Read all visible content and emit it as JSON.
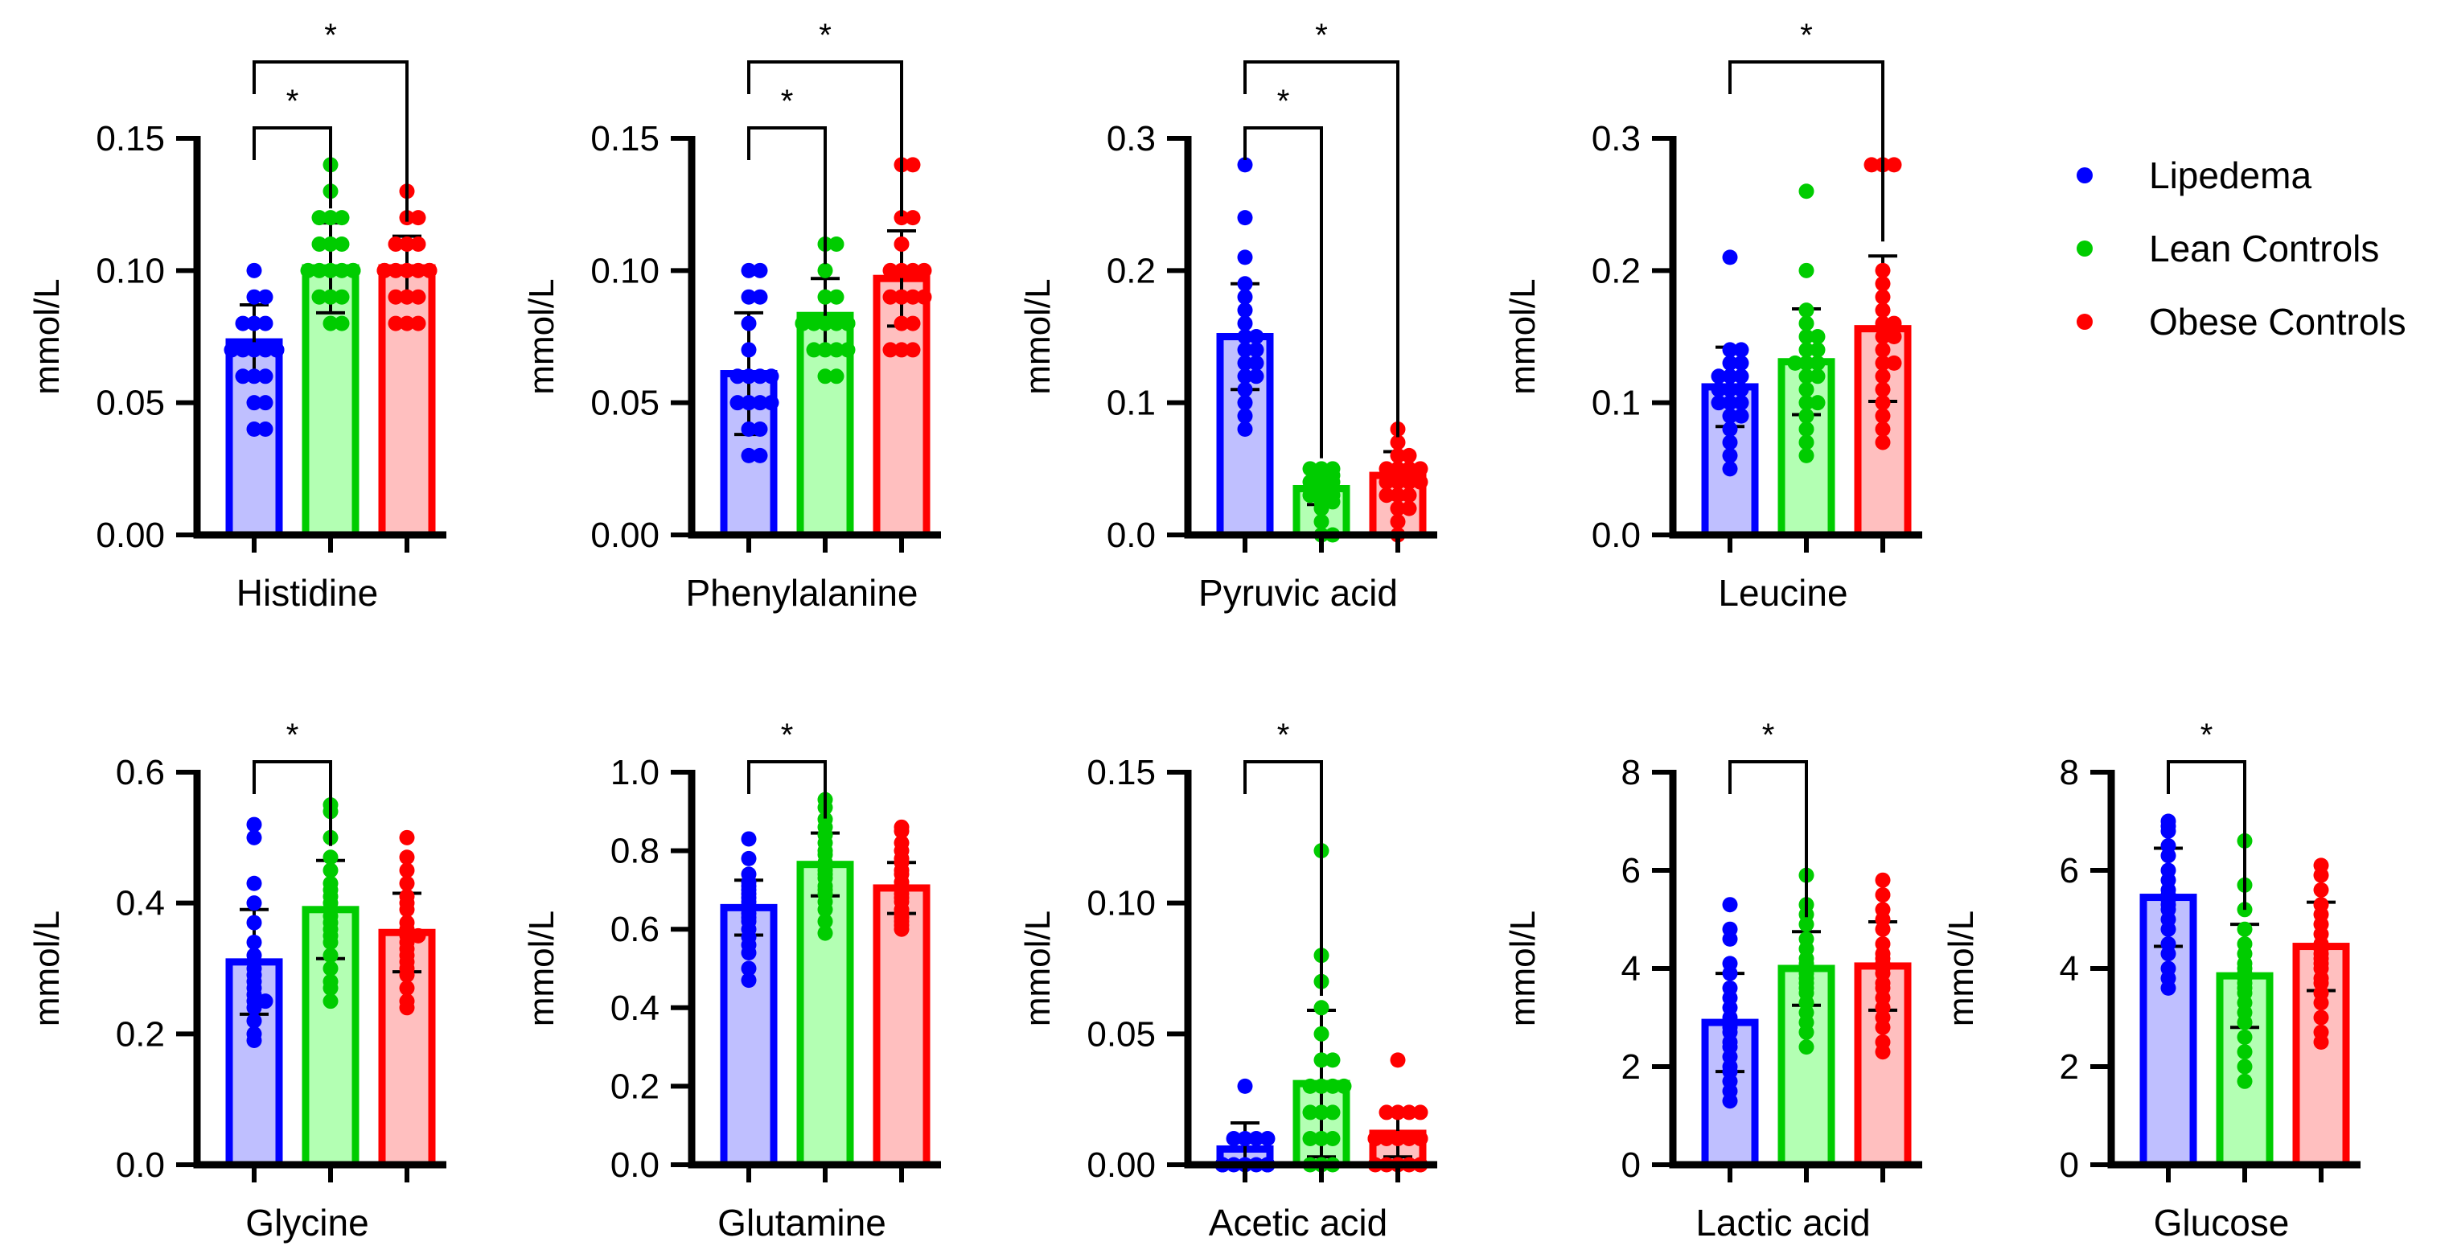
{
  "legend": {
    "items": [
      {
        "label": "Lipedema",
        "color": "#0000ff"
      },
      {
        "label": "Lean Controls",
        "color": "#00cc00"
      },
      {
        "label": "Obese Controls",
        "color": "#ff0000"
      }
    ]
  },
  "groups": [
    {
      "name": "Lipedema",
      "edge": "#0000ff",
      "fill": "#bfbfff"
    },
    {
      "name": "Lean Controls",
      "edge": "#00cc00",
      "fill": "#b3ffb3"
    },
    {
      "name": "Obese Controls",
      "edge": "#ff0000",
      "fill": "#ffbfbf"
    }
  ],
  "chart_data": [
    {
      "type": "bar",
      "title": "Histidine",
      "xlabel": "Histidine",
      "ylabel": "mmol/L",
      "ylim": [
        0,
        0.15
      ],
      "yticks": [
        "0.00",
        "0.05",
        "0.10",
        "0.15"
      ],
      "categories": [
        "Lipedema",
        "Lean Controls",
        "Obese Controls"
      ],
      "values": [
        0.073,
        0.101,
        0.101
      ],
      "sd": [
        0.014,
        0.017,
        0.012
      ],
      "points": [
        [
          0.1,
          0.09,
          0.09,
          0.08,
          0.08,
          0.08,
          0.07,
          0.07,
          0.07,
          0.07,
          0.07,
          0.07,
          0.06,
          0.06,
          0.06,
          0.05,
          0.05,
          0.04,
          0.04
        ],
        [
          0.14,
          0.13,
          0.12,
          0.12,
          0.12,
          0.11,
          0.11,
          0.11,
          0.1,
          0.1,
          0.1,
          0.1,
          0.1,
          0.1,
          0.09,
          0.09,
          0.09,
          0.08,
          0.08
        ],
        [
          0.13,
          0.12,
          0.12,
          0.11,
          0.11,
          0.11,
          0.1,
          0.1,
          0.1,
          0.1,
          0.1,
          0.1,
          0.1,
          0.09,
          0.09,
          0.09,
          0.08,
          0.08,
          0.08
        ]
      ],
      "significance": [
        {
          "from": 0,
          "to": 1,
          "label": "*"
        },
        {
          "from": 0,
          "to": 2,
          "label": "*"
        }
      ]
    },
    {
      "type": "bar",
      "title": "Phenylalanine",
      "xlabel": "Phenylalanine",
      "ylabel": "mmol/L",
      "ylim": [
        0,
        0.15
      ],
      "yticks": [
        "0.00",
        "0.05",
        "0.10",
        "0.15"
      ],
      "categories": [
        "Lipedema",
        "Lean Controls",
        "Obese Controls"
      ],
      "values": [
        0.061,
        0.083,
        0.097
      ],
      "sd": [
        0.023,
        0.014,
        0.018
      ],
      "points": [
        [
          0.1,
          0.1,
          0.09,
          0.09,
          0.08,
          0.07,
          0.06,
          0.06,
          0.06,
          0.06,
          0.05,
          0.05,
          0.05,
          0.05,
          0.04,
          0.04,
          0.03,
          0.03
        ],
        [
          0.11,
          0.11,
          0.1,
          0.09,
          0.09,
          0.08,
          0.08,
          0.08,
          0.08,
          0.08,
          0.08,
          0.08,
          0.07,
          0.07,
          0.07,
          0.07,
          0.06,
          0.06
        ],
        [
          0.14,
          0.14,
          0.12,
          0.12,
          0.11,
          0.1,
          0.1,
          0.1,
          0.1,
          0.09,
          0.09,
          0.09,
          0.09,
          0.08,
          0.08,
          0.07,
          0.07,
          0.07
        ]
      ],
      "significance": [
        {
          "from": 0,
          "to": 1,
          "label": "*"
        },
        {
          "from": 0,
          "to": 2,
          "label": "*"
        }
      ]
    },
    {
      "type": "bar",
      "title": "Pyruvic acid",
      "xlabel": "Pyruvic acid",
      "ylabel": "mmol/L",
      "ylim": [
        0,
        0.3
      ],
      "yticks": [
        "0.0",
        "0.1",
        "0.2",
        "0.3"
      ],
      "categories": [
        "Lipedema",
        "Lean Controls",
        "Obese Controls"
      ],
      "values": [
        0.15,
        0.035,
        0.045
      ],
      "sd": [
        0.04,
        0.012,
        0.018
      ],
      "points": [
        [
          0.28,
          0.24,
          0.21,
          0.19,
          0.18,
          0.17,
          0.16,
          0.15,
          0.15,
          0.14,
          0.14,
          0.13,
          0.13,
          0.12,
          0.12,
          0.11,
          0.1,
          0.09,
          0.08
        ],
        [
          0.05,
          0.05,
          0.05,
          0.045,
          0.045,
          0.04,
          0.04,
          0.04,
          0.035,
          0.035,
          0.03,
          0.03,
          0.03,
          0.025,
          0.025,
          0.02,
          0.01,
          0.0,
          0.0
        ],
        [
          0.08,
          0.07,
          0.06,
          0.06,
          0.05,
          0.05,
          0.05,
          0.05,
          0.04,
          0.04,
          0.04,
          0.04,
          0.03,
          0.03,
          0.03,
          0.02,
          0.02,
          0.01,
          0.0
        ]
      ],
      "significance": [
        {
          "from": 0,
          "to": 1,
          "label": "*"
        },
        {
          "from": 0,
          "to": 2,
          "label": "*"
        }
      ]
    },
    {
      "type": "bar",
      "title": "Leucine",
      "xlabel": "Leucine",
      "ylabel": "mmol/L",
      "ylim": [
        0,
        0.3
      ],
      "yticks": [
        "0.0",
        "0.1",
        "0.2",
        "0.3"
      ],
      "categories": [
        "Lipedema",
        "Lean Controls",
        "Obese Controls"
      ],
      "values": [
        0.112,
        0.131,
        0.156
      ],
      "sd": [
        0.03,
        0.04,
        0.055
      ],
      "points": [
        [
          0.21,
          0.14,
          0.14,
          0.13,
          0.13,
          0.12,
          0.12,
          0.12,
          0.11,
          0.11,
          0.11,
          0.1,
          0.1,
          0.1,
          0.09,
          0.09,
          0.08,
          0.07,
          0.06,
          0.05
        ],
        [
          0.26,
          0.2,
          0.17,
          0.16,
          0.15,
          0.15,
          0.14,
          0.14,
          0.13,
          0.13,
          0.13,
          0.12,
          0.12,
          0.11,
          0.1,
          0.1,
          0.09,
          0.08,
          0.07,
          0.06
        ],
        [
          0.28,
          0.28,
          0.28,
          0.2,
          0.19,
          0.18,
          0.17,
          0.16,
          0.16,
          0.15,
          0.15,
          0.14,
          0.13,
          0.13,
          0.12,
          0.11,
          0.1,
          0.09,
          0.08,
          0.07
        ]
      ],
      "significance": [
        {
          "from": 0,
          "to": 2,
          "label": "*"
        }
      ]
    },
    {
      "type": "bar",
      "title": "Glycine",
      "xlabel": "Glycine",
      "ylabel": "mmol/L",
      "ylim": [
        0,
        0.6
      ],
      "yticks": [
        "0.0",
        "0.2",
        "0.4",
        "0.6"
      ],
      "categories": [
        "Lipedema",
        "Lean Controls",
        "Obese Controls"
      ],
      "values": [
        0.31,
        0.39,
        0.355
      ],
      "sd": [
        0.08,
        0.075,
        0.06
      ],
      "points": [
        [
          0.52,
          0.5,
          0.43,
          0.4,
          0.37,
          0.34,
          0.32,
          0.31,
          0.3,
          0.29,
          0.28,
          0.27,
          0.26,
          0.25,
          0.25,
          0.24,
          0.22,
          0.2,
          0.19
        ],
        [
          0.55,
          0.54,
          0.5,
          0.47,
          0.45,
          0.43,
          0.42,
          0.41,
          0.4,
          0.39,
          0.38,
          0.37,
          0.36,
          0.35,
          0.34,
          0.32,
          0.3,
          0.28,
          0.27,
          0.25
        ],
        [
          0.5,
          0.47,
          0.45,
          0.43,
          0.41,
          0.4,
          0.39,
          0.37,
          0.36,
          0.35,
          0.35,
          0.34,
          0.33,
          0.32,
          0.31,
          0.3,
          0.29,
          0.27,
          0.25,
          0.24
        ]
      ],
      "significance": [
        {
          "from": 0,
          "to": 1,
          "label": "*"
        }
      ]
    },
    {
      "type": "bar",
      "title": "Glutamine",
      "xlabel": "Glutamine",
      "ylabel": "mmol/L",
      "ylim": [
        0,
        1.0
      ],
      "yticks": [
        "0.0",
        "0.2",
        "0.4",
        "0.6",
        "0.8",
        "1.0"
      ],
      "categories": [
        "Lipedema",
        "Lean Controls",
        "Obese Controls"
      ],
      "values": [
        0.655,
        0.765,
        0.705
      ],
      "sd": [
        0.07,
        0.08,
        0.065
      ],
      "points": [
        [
          0.83,
          0.78,
          0.74,
          0.72,
          0.71,
          0.7,
          0.69,
          0.68,
          0.67,
          0.66,
          0.65,
          0.64,
          0.63,
          0.62,
          0.6,
          0.58,
          0.56,
          0.54,
          0.5,
          0.47
        ],
        [
          0.93,
          0.91,
          0.88,
          0.86,
          0.84,
          0.82,
          0.8,
          0.79,
          0.77,
          0.76,
          0.75,
          0.74,
          0.73,
          0.71,
          0.7,
          0.69,
          0.67,
          0.65,
          0.62,
          0.59
        ],
        [
          0.86,
          0.85,
          0.82,
          0.8,
          0.78,
          0.77,
          0.75,
          0.74,
          0.72,
          0.71,
          0.7,
          0.69,
          0.68,
          0.67,
          0.65,
          0.64,
          0.63,
          0.62,
          0.61,
          0.6
        ]
      ],
      "significance": [
        {
          "from": 0,
          "to": 1,
          "label": "*"
        }
      ]
    },
    {
      "type": "bar",
      "title": "Acetic acid",
      "xlabel": "Acetic acid",
      "ylabel": "mmol/L",
      "ylim": [
        0,
        0.15
      ],
      "yticks": [
        "0.00",
        "0.05",
        "0.10",
        "0.15"
      ],
      "categories": [
        "Lipedema",
        "Lean Controls",
        "Obese Controls"
      ],
      "values": [
        0.006,
        0.031,
        0.012
      ],
      "sd": [
        0.01,
        0.028,
        0.009
      ],
      "points": [
        [
          0.03,
          0.01,
          0.01,
          0.01,
          0.01,
          0.0,
          0.0,
          0.0,
          0.0,
          0.0,
          0.0,
          0.0,
          0.0,
          0.0,
          0.0,
          0.0,
          0.0,
          0.0
        ],
        [
          0.12,
          0.08,
          0.07,
          0.06,
          0.05,
          0.04,
          0.04,
          0.03,
          0.03,
          0.03,
          0.03,
          0.02,
          0.02,
          0.02,
          0.01,
          0.01,
          0.01,
          0.0,
          0.0,
          0.0
        ],
        [
          0.04,
          0.02,
          0.02,
          0.02,
          0.02,
          0.01,
          0.01,
          0.01,
          0.01,
          0.01,
          0.01,
          0.01,
          0.0,
          0.0,
          0.0,
          0.0,
          0.0,
          0.0
        ]
      ],
      "significance": [
        {
          "from": 0,
          "to": 1,
          "label": "*"
        }
      ]
    },
    {
      "type": "bar",
      "title": "Lactic acid",
      "xlabel": "Lactic acid",
      "ylabel": "mmol/L",
      "ylim": [
        0,
        8
      ],
      "yticks": [
        "0",
        "2",
        "4",
        "6",
        "8"
      ],
      "categories": [
        "Lipedema",
        "Lean Controls",
        "Obese Controls"
      ],
      "values": [
        2.9,
        4.0,
        4.05
      ],
      "sd": [
        1.0,
        0.75,
        0.9
      ],
      "points": [
        [
          5.3,
          4.8,
          4.6,
          4.1,
          3.9,
          3.6,
          3.4,
          3.2,
          3.0,
          2.8,
          2.7,
          2.5,
          2.4,
          2.2,
          2.0,
          1.9,
          1.7,
          1.5,
          1.3
        ],
        [
          5.9,
          5.3,
          5.1,
          4.9,
          4.6,
          4.4,
          4.2,
          4.1,
          4.0,
          3.9,
          3.8,
          3.7,
          3.6,
          3.5,
          3.3,
          3.1,
          2.9,
          2.7,
          2.4
        ],
        [
          5.8,
          5.5,
          5.2,
          5.0,
          4.8,
          4.5,
          4.3,
          4.2,
          4.1,
          4.0,
          3.9,
          3.7,
          3.6,
          3.4,
          3.2,
          3.0,
          2.8,
          2.5,
          2.3
        ]
      ],
      "significance": [
        {
          "from": 0,
          "to": 1,
          "label": "*"
        }
      ]
    },
    {
      "type": "bar",
      "title": "Glucose",
      "xlabel": "Glucose",
      "ylabel": "mmol/L",
      "ylim": [
        0,
        8
      ],
      "yticks": [
        "0",
        "2",
        "4",
        "6",
        "8"
      ],
      "categories": [
        "Lipedema",
        "Lean Controls",
        "Obese Controls"
      ],
      "values": [
        5.45,
        3.85,
        4.45
      ],
      "sd": [
        1.0,
        1.05,
        0.9
      ],
      "points": [
        [
          7.0,
          6.9,
          6.8,
          6.5,
          6.3,
          6.0,
          5.8,
          5.6,
          5.5,
          5.4,
          5.3,
          5.2,
          5.0,
          4.8,
          4.5,
          4.3,
          4.0,
          3.8,
          3.6
        ],
        [
          6.6,
          5.7,
          5.2,
          4.8,
          4.5,
          4.3,
          4.1,
          4.0,
          3.9,
          3.8,
          3.7,
          3.6,
          3.5,
          3.3,
          3.1,
          2.9,
          2.6,
          2.3,
          2.0,
          1.7
        ],
        [
          6.1,
          5.9,
          5.6,
          5.3,
          5.1,
          4.9,
          4.7,
          4.5,
          4.4,
          4.3,
          4.2,
          4.1,
          4.0,
          3.8,
          3.7,
          3.5,
          3.3,
          3.0,
          2.7,
          2.5
        ]
      ],
      "significance": [
        {
          "from": 0,
          "to": 1,
          "label": "*"
        }
      ]
    }
  ]
}
